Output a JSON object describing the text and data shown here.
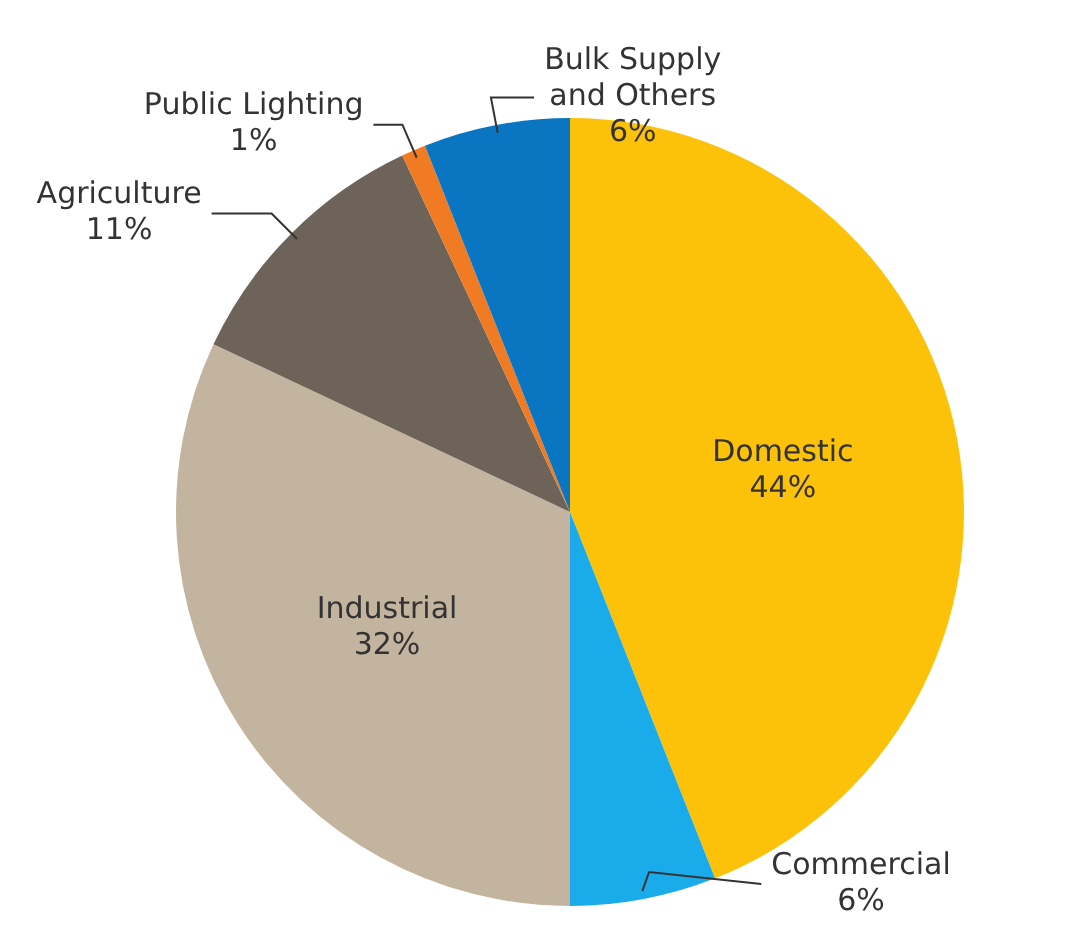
{
  "chart_data": {
    "type": "pie",
    "categories": [
      "Domestic",
      "Commercial",
      "Industrial",
      "Agriculture",
      "Public Lighting",
      "Bulk Supply and Others"
    ],
    "values": [
      44,
      6,
      32,
      11,
      1,
      6
    ],
    "colors": [
      "#fcc20a",
      "#1aabea",
      "#c2b49f",
      "#6e6358",
      "#f07b22",
      "#0a76c1"
    ],
    "value_labels": [
      "44%",
      "6%",
      "32%",
      "11%",
      "1%",
      "6%"
    ],
    "legend": false
  }
}
